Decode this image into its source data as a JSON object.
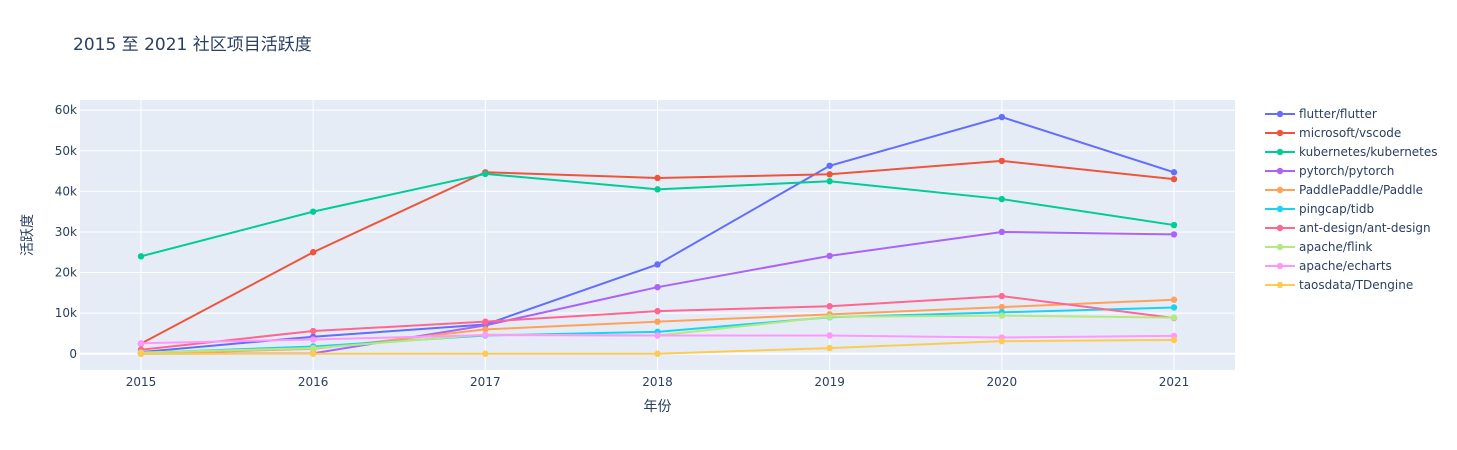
{
  "chart_data": {
    "type": "line",
    "title": "2015 至 2021 社区项目活跃度",
    "xlabel": "年份",
    "ylabel": "活跃度",
    "x": [
      "2015",
      "2016",
      "2017",
      "2018",
      "2019",
      "2020",
      "2021"
    ],
    "ylim": [
      -4000,
      62500
    ],
    "y_ticks": [
      0,
      10000,
      20000,
      30000,
      40000,
      50000,
      60000
    ],
    "y_tick_labels": [
      "0",
      "10k",
      "20k",
      "30k",
      "40k",
      "50k",
      "60k"
    ],
    "grid": true,
    "legend_position": "right",
    "background": "#e5ecf6",
    "series": [
      {
        "name": "flutter/flutter",
        "color": "#636efa",
        "values": [
          400,
          4200,
          7200,
          22000,
          46300,
          58300,
          44700
        ]
      },
      {
        "name": "microsoft/vscode",
        "color": "#ef553b",
        "values": [
          2500,
          25000,
          44700,
          43300,
          44200,
          47500,
          43000
        ]
      },
      {
        "name": "kubernetes/kubernetes",
        "color": "#00cc96",
        "values": [
          24000,
          35000,
          44300,
          40500,
          42500,
          38100,
          31700
        ]
      },
      {
        "name": "pytorch/pytorch",
        "color": "#ab63fa",
        "values": [
          0,
          100,
          7000,
          16400,
          24100,
          30000,
          29400
        ]
      },
      {
        "name": "PaddlePaddle/Paddle",
        "color": "#ffa15a",
        "values": [
          0,
          1200,
          6000,
          7900,
          9700,
          11500,
          13300
        ]
      },
      {
        "name": "pingcap/tidb",
        "color": "#19d3f3",
        "values": [
          200,
          1800,
          4500,
          5400,
          9000,
          10200,
          11400
        ]
      },
      {
        "name": "ant-design/ant-design",
        "color": "#ff6692",
        "values": [
          1000,
          5600,
          7900,
          10500,
          11700,
          14200,
          8800
        ]
      },
      {
        "name": "apache/flink",
        "color": "#b6e880",
        "values": [
          300,
          1400,
          4700,
          4500,
          9100,
          9400,
          8900
        ]
      },
      {
        "name": "apache/echarts",
        "color": "#ff97ff",
        "values": [
          2600,
          3500,
          4600,
          4500,
          4500,
          4000,
          4400
        ]
      },
      {
        "name": "taosdata/TDengine",
        "color": "#fecb52",
        "values": [
          0,
          0,
          0,
          0,
          1400,
          3100,
          3400
        ]
      }
    ]
  }
}
